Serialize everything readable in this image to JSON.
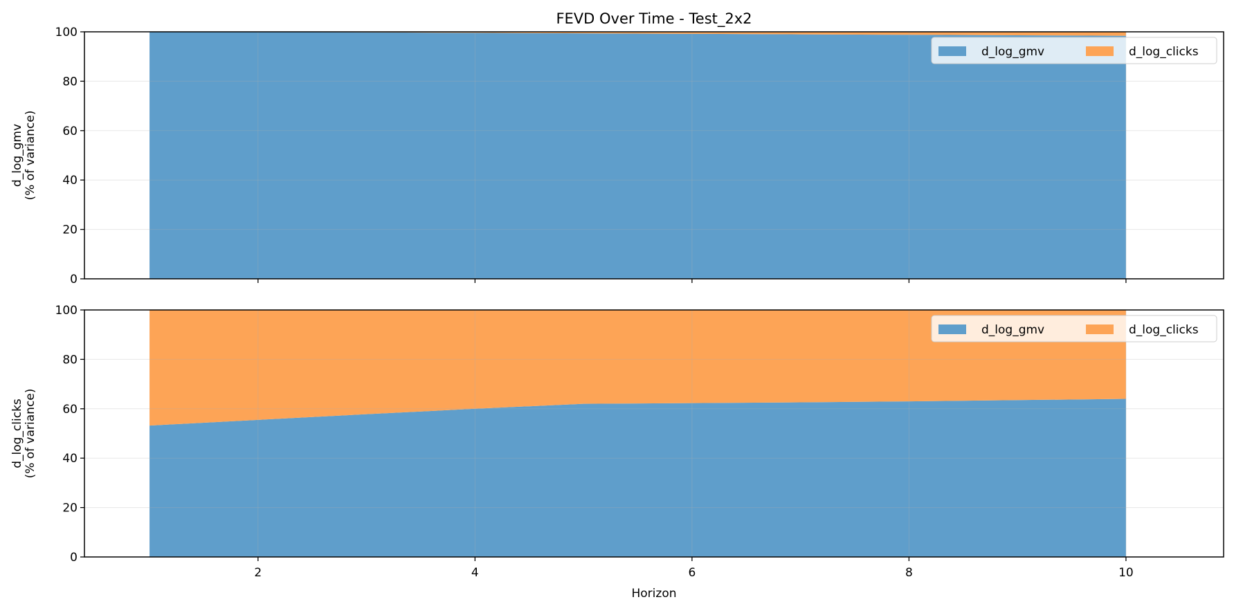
{
  "figure_title": "FEVD Over Time - Test_2x2",
  "colors": {
    "d_log_gmv": "#5f9ecb",
    "d_log_clicks": "#fda456",
    "grid": "#e6e6e6",
    "axis": "#000000"
  },
  "chart_data": [
    {
      "type": "area",
      "stacked": true,
      "title": "FEVD Over Time - Test_2x2",
      "xlabel": "",
      "ylabel": [
        "d_log_gmv",
        "(% of variance)"
      ],
      "xlim": [
        0.4,
        10.9
      ],
      "ylim": [
        0,
        100
      ],
      "xticks": [
        2,
        4,
        6,
        8,
        10
      ],
      "yticks": [
        0,
        20,
        40,
        60,
        80,
        100
      ],
      "show_xtick_labels": false,
      "grid": true,
      "legend_position": "top-right",
      "x": [
        1,
        2,
        3,
        4,
        5,
        6,
        7,
        8,
        9,
        10
      ],
      "series": [
        {
          "name": "d_log_gmv",
          "color_key": "d_log_gmv",
          "values": [
            100,
            99.9,
            99.8,
            99.6,
            99.4,
            99.2,
            99.0,
            98.8,
            98.6,
            98.4
          ]
        },
        {
          "name": "d_log_clicks",
          "color_key": "d_log_clicks",
          "values": [
            0,
            0.1,
            0.2,
            0.4,
            0.6,
            0.8,
            1.0,
            1.2,
            1.4,
            1.6
          ]
        }
      ]
    },
    {
      "type": "area",
      "stacked": true,
      "title": "",
      "xlabel": "Horizon",
      "ylabel": [
        "d_log_clicks",
        "(% of variance)"
      ],
      "xlim": [
        0.4,
        10.9
      ],
      "ylim": [
        0,
        100
      ],
      "xticks": [
        2,
        4,
        6,
        8,
        10
      ],
      "yticks": [
        0,
        20,
        40,
        60,
        80,
        100
      ],
      "show_xtick_labels": true,
      "grid": true,
      "legend_position": "top-right",
      "x": [
        1,
        2,
        3,
        4,
        5,
        6,
        7,
        8,
        9,
        10
      ],
      "series": [
        {
          "name": "d_log_gmv",
          "color_key": "d_log_gmv",
          "values": [
            53.2,
            55.5,
            57.8,
            60.0,
            62.0,
            62.3,
            62.6,
            63.0,
            63.5,
            64.0
          ]
        },
        {
          "name": "d_log_clicks",
          "color_key": "d_log_clicks",
          "values": [
            46.8,
            44.5,
            42.2,
            40.0,
            38.0,
            37.7,
            37.4,
            37.0,
            36.5,
            36.0
          ]
        }
      ]
    }
  ]
}
